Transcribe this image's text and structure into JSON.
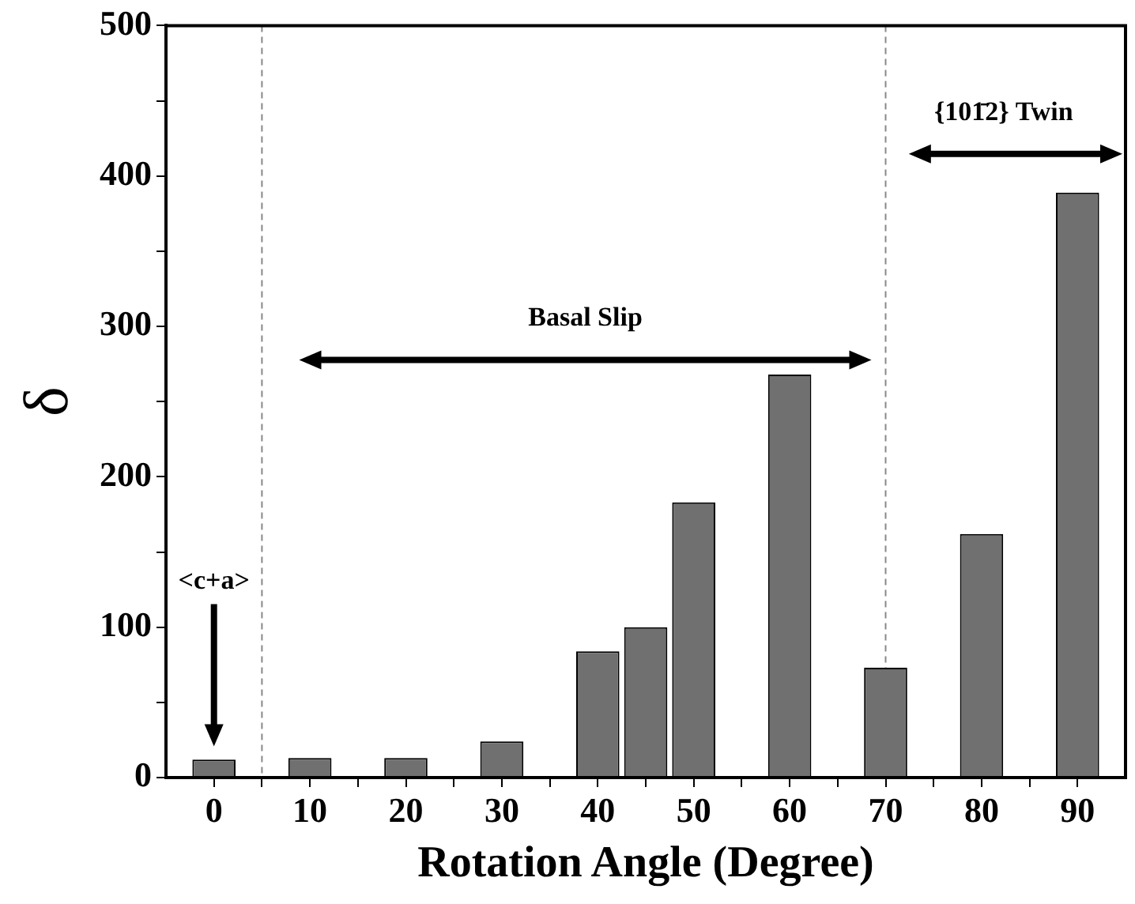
{
  "chart_data": {
    "type": "bar",
    "xlabel": "Rotation Angle (Degree)",
    "ylabel": "δ",
    "x": [
      0,
      10,
      20,
      30,
      40,
      45,
      50,
      60,
      70,
      80,
      90
    ],
    "values": [
      12,
      13,
      13,
      24,
      84,
      100,
      183,
      268,
      73,
      162,
      389
    ],
    "color": "#707070",
    "xlim": [
      -5,
      95
    ],
    "ylim": [
      0,
      500
    ],
    "xticks": [
      0,
      {
        "value": 5,
        "label": null
      },
      10,
      {
        "value": 15,
        "label": null
      },
      20,
      {
        "value": 25,
        "label": null
      },
      30,
      {
        "value": 35,
        "label": null
      },
      40,
      {
        "value": 45,
        "label": null
      },
      50,
      {
        "value": 55,
        "label": null
      },
      60,
      {
        "value": 65,
        "label": null
      },
      70,
      {
        "value": 75,
        "label": null
      },
      80,
      {
        "value": 85,
        "label": null
      },
      90
    ],
    "yticks": [
      0,
      {
        "value": 50,
        "label": null
      },
      100,
      {
        "value": 150,
        "label": null
      },
      200,
      {
        "value": 250,
        "label": null
      },
      300,
      {
        "value": 350,
        "label": null
      },
      400,
      {
        "value": 450,
        "label": null
      },
      500
    ],
    "ref_lines": [
      {
        "axis": "x",
        "value": 5,
        "color": "#888888",
        "line_style": "dashed"
      },
      {
        "axis": "x",
        "value": 70,
        "color": "#888888",
        "line_style": "dashed"
      }
    ],
    "annotations": [
      "<c+a>",
      "Basal Slip",
      "{101̄2} Twin"
    ],
    "grid": false,
    "legend": false
  }
}
